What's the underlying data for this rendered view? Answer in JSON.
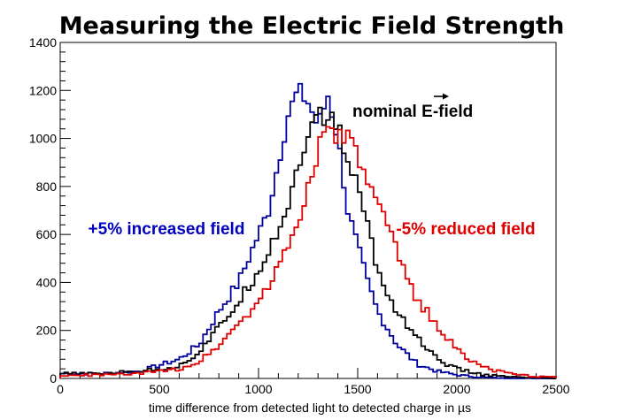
{
  "chart_data": {
    "type": "line",
    "title": "Measuring the Electric Field Strength",
    "xlabel": "time difference from detected light to detected charge in µs",
    "ylabel": "",
    "xlim": [
      0,
      2500
    ],
    "ylim": [
      0,
      1400
    ],
    "xticks": [
      "0",
      "500",
      "1000",
      "1500",
      "2000",
      "2500"
    ],
    "yticks": [
      "0",
      "200",
      "400",
      "600",
      "800",
      "1000",
      "1200",
      "1400"
    ],
    "bin_width": 20,
    "grid": false,
    "series": [
      {
        "name": "+5% increased field",
        "color": "#0000a0",
        "values": [
          [
            0,
            20
          ],
          [
            200,
            20
          ],
          [
            400,
            30
          ],
          [
            600,
            80
          ],
          [
            700,
            140
          ],
          [
            800,
            280
          ],
          [
            900,
            400
          ],
          [
            1000,
            600
          ],
          [
            1050,
            700
          ],
          [
            1100,
            900
          ],
          [
            1150,
            1100
          ],
          [
            1200,
            1200
          ],
          [
            1250,
            1150
          ],
          [
            1300,
            1050
          ],
          [
            1350,
            1180
          ],
          [
            1400,
            1000
          ],
          [
            1450,
            700
          ],
          [
            1500,
            550
          ],
          [
            1550,
            400
          ],
          [
            1600,
            280
          ],
          [
            1700,
            140
          ],
          [
            1800,
            60
          ],
          [
            1900,
            30
          ],
          [
            2000,
            15
          ],
          [
            2100,
            6
          ],
          [
            2200,
            2
          ],
          [
            2300,
            0
          ],
          [
            2500,
            0
          ]
        ]
      },
      {
        "name": "nominal E-field",
        "color": "#000000",
        "values": [
          [
            0,
            20
          ],
          [
            200,
            20
          ],
          [
            400,
            30
          ],
          [
            600,
            50
          ],
          [
            700,
            110
          ],
          [
            800,
            210
          ],
          [
            900,
            320
          ],
          [
            1000,
            450
          ],
          [
            1100,
            620
          ],
          [
            1150,
            720
          ],
          [
            1200,
            900
          ],
          [
            1250,
            1000
          ],
          [
            1300,
            1100
          ],
          [
            1350,
            1080
          ],
          [
            1400,
            1060
          ],
          [
            1450,
            900
          ],
          [
            1500,
            800
          ],
          [
            1550,
            650
          ],
          [
            1600,
            450
          ],
          [
            1650,
            350
          ],
          [
            1700,
            280
          ],
          [
            1800,
            170
          ],
          [
            1900,
            80
          ],
          [
            2000,
            40
          ],
          [
            2100,
            20
          ],
          [
            2200,
            10
          ],
          [
            2300,
            5
          ],
          [
            2400,
            2
          ],
          [
            2500,
            0
          ]
        ]
      },
      {
        "name": "-5% reduced field",
        "color": "#e00000",
        "values": [
          [
            0,
            10
          ],
          [
            200,
            15
          ],
          [
            400,
            20
          ],
          [
            600,
            40
          ],
          [
            700,
            70
          ],
          [
            800,
            140
          ],
          [
            900,
            230
          ],
          [
            1000,
            320
          ],
          [
            1100,
            460
          ],
          [
            1150,
            560
          ],
          [
            1200,
            650
          ],
          [
            1250,
            800
          ],
          [
            1300,
            950
          ],
          [
            1350,
            1050
          ],
          [
            1400,
            1000
          ],
          [
            1450,
            1010
          ],
          [
            1500,
            920
          ],
          [
            1550,
            820
          ],
          [
            1600,
            720
          ],
          [
            1650,
            640
          ],
          [
            1700,
            520
          ],
          [
            1750,
            420
          ],
          [
            1800,
            330
          ],
          [
            1900,
            220
          ],
          [
            2000,
            120
          ],
          [
            2100,
            60
          ],
          [
            2200,
            30
          ],
          [
            2300,
            15
          ],
          [
            2400,
            8
          ],
          [
            2500,
            5
          ]
        ]
      }
    ],
    "annotations": [
      {
        "text": "+5% increased field",
        "color": "#0000a0",
        "x": 750,
        "y": 620,
        "anchor": "middle"
      },
      {
        "text": "nominal ",
        "color": "#000000",
        "x": 1470,
        "y": 1090,
        "anchor": "start"
      },
      {
        "text": "E",
        "color": "#000000",
        "x": 1470,
        "y": 1090,
        "anchor": "start"
      },
      {
        "text": "-field",
        "color": "#000000",
        "x": 1470,
        "y": 1090,
        "anchor": "start"
      },
      {
        "text": "-5% reduced field",
        "color": "#e00000",
        "x": 2020,
        "y": 620,
        "anchor": "middle"
      }
    ]
  }
}
